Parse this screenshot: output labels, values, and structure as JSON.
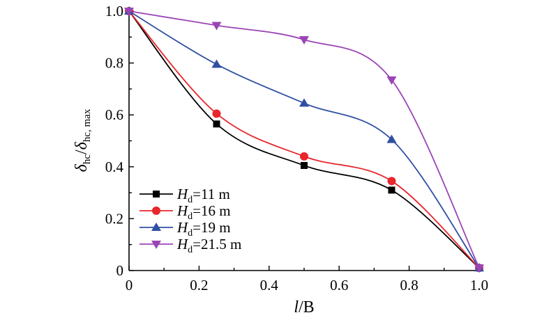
{
  "chart_data": {
    "type": "line",
    "xlabel": {
      "italic": "l",
      "rest": "/B"
    },
    "ylabel": {
      "italic1": "δ",
      "sub1": "hc",
      "slash": "/",
      "italic2": "δ",
      "sub2": "hc, max"
    },
    "xlim": [
      0,
      1.0
    ],
    "ylim": [
      0,
      1.0
    ],
    "x_ticks": [
      "0",
      "0.2",
      "0.4",
      "0.6",
      "0.8",
      "1.0"
    ],
    "y_ticks": [
      "0",
      "0.2",
      "0.4",
      "0.6",
      "0.8",
      "1.0"
    ],
    "grid": false,
    "legend_position": "bottom-left",
    "x": [
      0,
      0.25,
      0.5,
      0.75,
      1.0
    ],
    "series": [
      {
        "name": "Hd=11 m",
        "legend": {
          "italic": "H",
          "sub": "d",
          "rest": "=11 m"
        },
        "color": "#000000",
        "marker": "square",
        "values": [
          1.0,
          0.565,
          0.405,
          0.31,
          0.01
        ]
      },
      {
        "name": "Hd=16 m",
        "legend": {
          "italic": "H",
          "sub": "d",
          "rest": "=16 m"
        },
        "color": "#e8262b",
        "marker": "circle",
        "values": [
          1.0,
          0.605,
          0.44,
          0.345,
          0.01
        ]
      },
      {
        "name": "Hd=19 m",
        "legend": {
          "italic": "H",
          "sub": "d",
          "rest": "=19 m"
        },
        "color": "#2e4fa3",
        "marker": "triangle-up",
        "values": [
          1.0,
          0.795,
          0.645,
          0.505,
          0.01
        ]
      },
      {
        "name": "Hd=21.5 m",
        "legend": {
          "italic": "H",
          "sub": "d",
          "rest": "=21.5 m"
        },
        "color": "#9b44b6",
        "marker": "triangle-down",
        "values": [
          1.0,
          0.945,
          0.89,
          0.735,
          0.01
        ]
      }
    ]
  }
}
